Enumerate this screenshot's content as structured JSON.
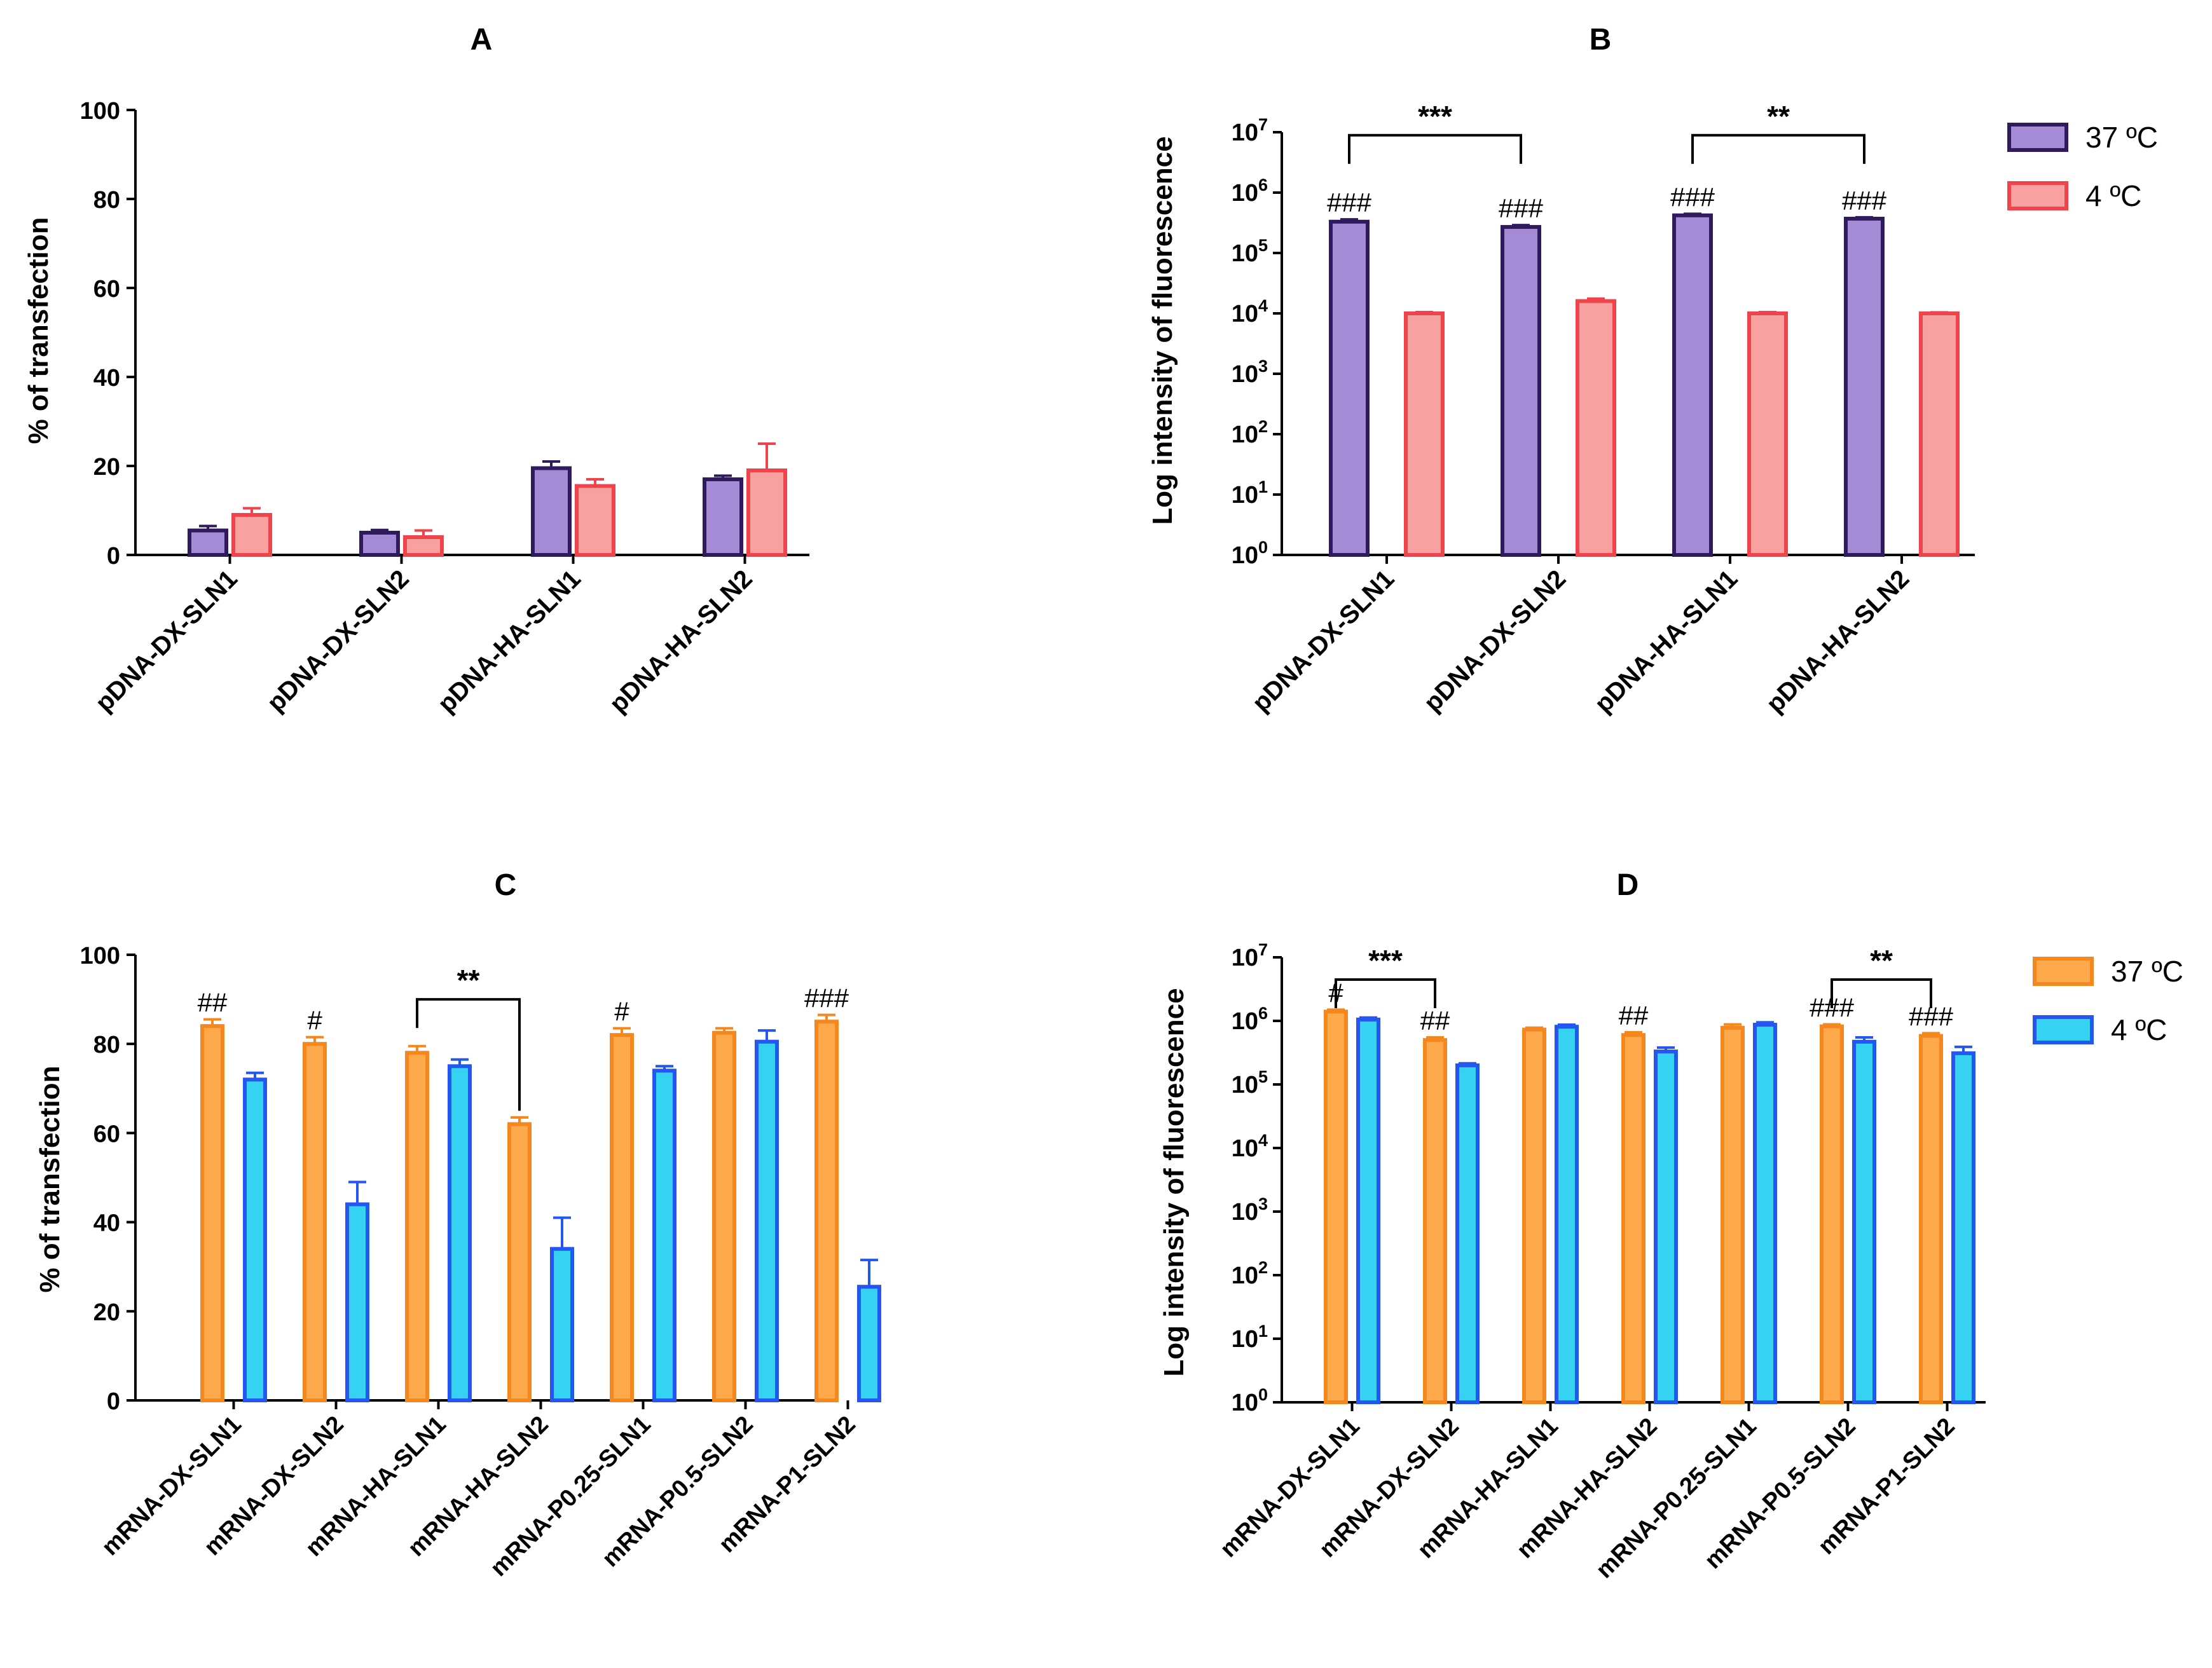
{
  "figure": {
    "colors": {
      "purple_fill": "#A58BD6",
      "purple_edge": "#2E1A5C",
      "pink_fill": "#F7A1A1",
      "pink_edge": "#F0444C",
      "orange_fill": "#FFA94D",
      "orange_edge": "#F5871F",
      "cyan_fill": "#35D2F2",
      "cyan_edge": "#2456F0",
      "axis": "#000000"
    }
  },
  "chart_data": [
    {
      "id": "A",
      "type": "bar",
      "title": "A",
      "ylabel": "% of transfection",
      "xlabel": "",
      "scale": "linear",
      "ylim": [
        0,
        100
      ],
      "yticks": [
        "0",
        "20",
        "40",
        "60",
        "80",
        "100"
      ],
      "categories": [
        "pDNA-DX-SLN1",
        "pDNA-DX-SLN2",
        "pDNA-HA-SLN1",
        "pDNA-HA-SLN2"
      ],
      "series": [
        {
          "name": "37 ºC",
          "color": "purple",
          "values": [
            5.5,
            5,
            19.5,
            17
          ],
          "errors": [
            1,
            0.6,
            1.5,
            0.8
          ]
        },
        {
          "name": "4 ºC",
          "color": "pink",
          "values": [
            9,
            4,
            15.5,
            19
          ],
          "errors": [
            1.5,
            1.5,
            1.5,
            6
          ]
        }
      ],
      "annotations": []
    },
    {
      "id": "B",
      "type": "bar",
      "title": "B",
      "ylabel": "Log intensity of fluorescence",
      "xlabel": "",
      "scale": "log",
      "ylim_log10": [
        0,
        7
      ],
      "yticks": [
        "0",
        "1",
        "2",
        "3",
        "4",
        "5",
        "6",
        "7"
      ],
      "ytick_base": "10",
      "categories": [
        "pDNA-DX-SLN1",
        "pDNA-DX-SLN2",
        "pDNA-HA-SLN1",
        "pDNA-HA-SLN2"
      ],
      "series": [
        {
          "name": "37 ºC",
          "color": "purple",
          "values": [
            330000,
            270000,
            420000,
            370000
          ],
          "errors": [
            30000,
            20000,
            25000,
            20000
          ]
        },
        {
          "name": "4 ºC",
          "color": "pink",
          "values": [
            10000,
            16000,
            10000,
            10000
          ],
          "errors": [
            500,
            1500,
            500,
            400
          ]
        }
      ],
      "legend": [
        {
          "label": "37 ºC",
          "color": "purple"
        },
        {
          "label": "4 ºC",
          "color": "pink"
        }
      ],
      "annotations": [
        {
          "text": "###",
          "series": 0,
          "cat": 0
        },
        {
          "text": "###",
          "series": 0,
          "cat": 1
        },
        {
          "text": "###",
          "series": 0,
          "cat": 2
        },
        {
          "text": "###",
          "series": 0,
          "cat": 3
        }
      ],
      "brackets": [
        {
          "from": 0,
          "to": 1,
          "text": "***",
          "level_log10": 6.95
        },
        {
          "from": 2,
          "to": 3,
          "text": "**",
          "level_log10": 6.95
        }
      ]
    },
    {
      "id": "C",
      "type": "bar",
      "title": "C",
      "ylabel": "% of transfection",
      "xlabel": "",
      "scale": "linear",
      "ylim": [
        0,
        100
      ],
      "yticks": [
        "0",
        "20",
        "40",
        "60",
        "80",
        "100"
      ],
      "categories": [
        "mRNA-DX-SLN1",
        "mRNA-DX-SLN2",
        "mRNA-HA-SLN1",
        "mRNA-HA-SLN2",
        "mRNA-P0.25-SLN1",
        "mRNA-P0.5-SLN2",
        "mRNA-P1-SLN2"
      ],
      "series": [
        {
          "name": "37 ºC",
          "color": "orange",
          "values": [
            84,
            80,
            78,
            62,
            82,
            82.5,
            85
          ],
          "errors": [
            1.5,
            1.5,
            1.5,
            1.5,
            1.5,
            1,
            1.5
          ]
        },
        {
          "name": "4 ºC",
          "color": "cyan",
          "values": [
            72,
            44,
            75,
            34,
            74,
            80.5,
            25.5
          ],
          "errors": [
            1.5,
            5,
            1.5,
            7,
            1,
            2.5,
            6
          ]
        }
      ],
      "annotations": [
        {
          "text": "##",
          "series": 0,
          "cat": 0
        },
        {
          "text": "#",
          "series": 0,
          "cat": 1
        },
        {
          "text": "#",
          "series": 0,
          "cat": 4
        },
        {
          "text": "###",
          "series": 0,
          "cat": 6
        }
      ],
      "brackets": [
        {
          "from": 2,
          "to": 3,
          "text": "**",
          "level": 90,
          "drop": 25
        }
      ]
    },
    {
      "id": "D",
      "type": "bar",
      "title": "D",
      "ylabel": "Log intensity of fluorescence",
      "xlabel": "",
      "scale": "log",
      "ylim_log10": [
        0,
        7
      ],
      "yticks": [
        "0",
        "1",
        "2",
        "3",
        "4",
        "5",
        "6",
        "7"
      ],
      "ytick_base": "10",
      "categories": [
        "mRNA-DX-SLN1",
        "mRNA-DX-SLN2",
        "mRNA-HA-SLN1",
        "mRNA-HA-SLN2",
        "mRNA-P0.25-SLN1",
        "mRNA-P0.5-SLN2",
        "mRNA-P1-SLN2"
      ],
      "series": [
        {
          "name": "37 ºC",
          "color": "orange",
          "values": [
            1400000,
            500000,
            730000,
            600000,
            780000,
            820000,
            580000
          ],
          "errors": [
            100000,
            50000,
            50000,
            60000,
            100000,
            60000,
            60000
          ]
        },
        {
          "name": "4 ºC",
          "color": "cyan",
          "values": [
            1050000,
            200000,
            810000,
            330000,
            870000,
            470000,
            310000
          ],
          "errors": [
            80000,
            15000,
            60000,
            50000,
            80000,
            80000,
            80000
          ]
        }
      ],
      "legend": [
        {
          "label": "37 ºC",
          "color": "orange"
        },
        {
          "label": "4 ºC",
          "color": "cyan"
        }
      ],
      "annotations": [
        {
          "text": "#",
          "series": 0,
          "cat": 0
        },
        {
          "text": "##",
          "series": 0,
          "cat": 1
        },
        {
          "text": "##",
          "series": 0,
          "cat": 3
        },
        {
          "text": "###",
          "series": 0,
          "cat": 5
        },
        {
          "text": "###",
          "series": 0,
          "cat": 6
        }
      ],
      "brackets": [
        {
          "from": 0,
          "to": 1,
          "text": "***",
          "level_log10": 6.65
        },
        {
          "from": 5,
          "to": 6,
          "text": "**",
          "level_log10": 6.65
        }
      ]
    }
  ]
}
